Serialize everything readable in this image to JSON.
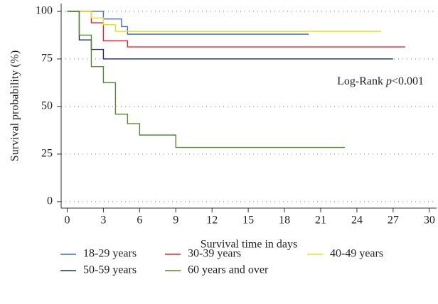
{
  "chart_data": {
    "type": "step",
    "x_label": "Survival time in days",
    "y_label": "Survival probability (%)",
    "annotation": {
      "prefix": "Log-Rank ",
      "italic": "p",
      "suffix": "<0.001"
    },
    "xlim": [
      -0.5,
      30.6
    ],
    "ylim": [
      -3.4,
      104.1
    ],
    "xticks": [
      0,
      3,
      6,
      9,
      12,
      15,
      18,
      21,
      24,
      27,
      30
    ],
    "yticks": [
      0,
      25,
      50,
      75,
      100
    ],
    "grid": true,
    "series": [
      {
        "name": "18-29 years",
        "color": "#3f6fd1",
        "x": [
          0,
          3,
          4.5,
          5,
          20
        ],
        "values": [
          100,
          96,
          92,
          88,
          88
        ]
      },
      {
        "name": "30-39 years",
        "color": "#e0262e",
        "x": [
          0,
          2,
          3,
          5,
          28
        ],
        "values": [
          100,
          94,
          84.5,
          81.3,
          81.3
        ]
      },
      {
        "name": "40-49 years",
        "color": "#ede21a",
        "x": [
          0,
          2,
          3,
          4,
          26
        ],
        "values": [
          100,
          96.5,
          93,
          89.5,
          89.5
        ]
      },
      {
        "name": "50-59 years",
        "color": "#1d2c5e",
        "x": [
          0,
          1,
          2,
          3,
          27
        ],
        "values": [
          100,
          85,
          80,
          75,
          75
        ]
      },
      {
        "name": "60 years and over",
        "color": "#4f8a2c",
        "x": [
          0,
          1,
          2,
          3,
          4,
          5,
          6,
          9,
          23
        ],
        "values": [
          100,
          87.5,
          71,
          62.5,
          46,
          41,
          35,
          28.5,
          28.5
        ]
      }
    ]
  }
}
